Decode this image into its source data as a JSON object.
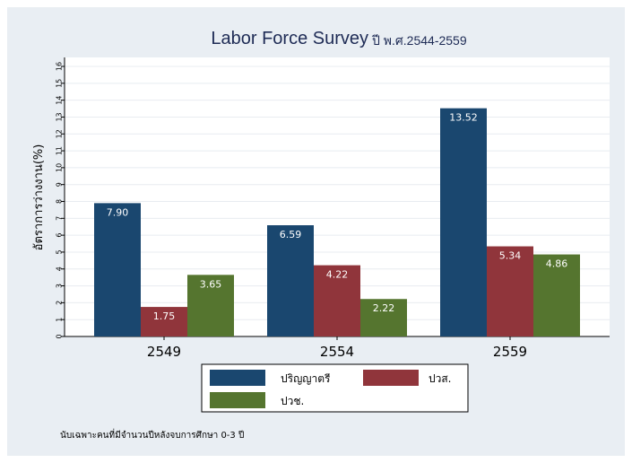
{
  "chart_data": {
    "type": "bar",
    "title": "Labor Force Survey",
    "subtitle": "ปี พ.ศ.2544-2559",
    "ylabel": "อัตราการว่างงาน(%)",
    "xlabel": "",
    "ylim": [
      0,
      16
    ],
    "yticks": [
      "0",
      "1",
      "2",
      "3",
      "4",
      "5",
      "6",
      "7",
      "8",
      "9",
      "10",
      "11",
      "12",
      "13",
      "14",
      "15",
      "16"
    ],
    "categories": [
      "2549",
      "2554",
      "2559"
    ],
    "series": [
      {
        "name": "ปริญญาตรี",
        "color": "#1a476f",
        "values": [
          7.9,
          6.59,
          13.52
        ],
        "labels": [
          "7.90",
          "6.59",
          "13.52"
        ]
      },
      {
        "name": "ปวส.",
        "color": "#90353b",
        "values": [
          1.75,
          4.22,
          5.34
        ],
        "labels": [
          "1.75",
          "4.22",
          "5.34"
        ]
      },
      {
        "name": "ปวช.",
        "color": "#55752f",
        "values": [
          3.65,
          2.22,
          4.86
        ],
        "labels": [
          "3.65",
          "2.22",
          "4.86"
        ]
      }
    ],
    "grid": true,
    "legend_position": "bottom"
  },
  "note": "นับเฉพาะคนที่มีจำนวนปีหลังจบการศึกษา 0-3 ปี"
}
